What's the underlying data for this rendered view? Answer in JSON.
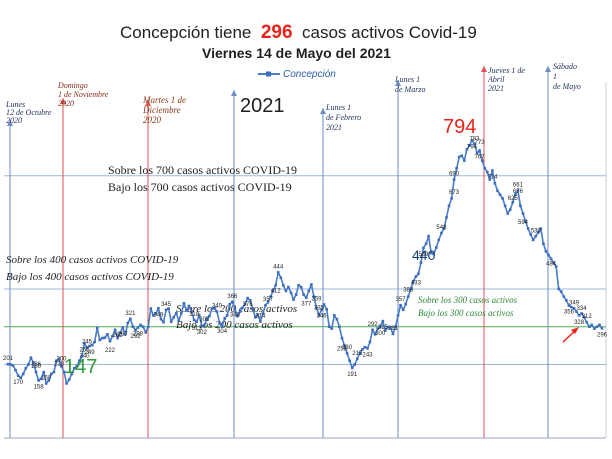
{
  "chart_data": {
    "type": "line",
    "title_prefix": "Concepción tiene",
    "title_number": "296",
    "title_suffix": "casos activos Covid-19",
    "subtitle": "Viernes 14 de Mayo del 2021",
    "legend": "Concepción",
    "ylim": [
      0,
      900
    ],
    "series": [
      {
        "name": "Concepción",
        "color": "#4a7cc8",
        "values": [
          201,
          200,
          197,
          185,
          170,
          165,
          175,
          190,
          200,
          218,
          205,
          180,
          158,
          162,
          180,
          150,
          158,
          175,
          180,
          210,
          215,
          195,
          180,
          150,
          160,
          175,
          190,
          195,
          210,
          222,
          256,
          245,
          249,
          251,
          260,
          297,
          265,
          270,
          271,
          280,
          262,
          275,
          292,
          270,
          284,
          298,
          280,
          310,
          321,
          300,
          291,
          298,
          305,
          300,
          285,
          299,
          348,
          330,
          335,
          349,
          320,
          312,
          345,
          348,
          313,
          325,
          336,
          316,
          336,
          362,
          343,
          355,
          340,
          318,
          313,
          331,
          302,
          304,
          320,
          328,
          348,
          350,
          340,
          310,
          300,
          322,
          330,
          360,
          366,
          348,
          328,
          340,
          350,
          360,
          376,
          370,
          348,
          325,
          332,
          314,
          335,
          357,
          365,
          380,
          395,
          410,
          444,
          430,
          410,
          395,
          405,
          390,
          372,
          385,
          410,
          405,
          385,
          377,
          395,
          412,
          380,
          350,
          330,
          345,
          359,
          346,
          300,
          295,
          330,
          320,
          300,
          270,
          250,
          230,
          210,
          191,
          200,
          215,
          230,
          240,
          246,
          243,
          260,
          292,
          280,
          295,
          300,
          315,
          290,
          299,
          298,
          281,
          300,
          330,
          357,
          345,
          360,
          380,
          400,
          420,
          433,
          440,
          470,
          509,
          520,
          540,
          495,
          493,
          510,
          530,
          548,
          560,
          590,
          620,
          640,
          690,
          720,
          750,
          753,
          740,
          770,
          780,
          794,
          785,
          760,
          767,
          740,
          720,
          710,
          690,
          714,
          680,
          660,
          650,
          640,
          620,
          600,
          610,
          630,
          650,
          661,
          620,
          600,
          580,
          560,
          545,
          530,
          540,
          550,
          560,
          520,
          500,
          490,
          480,
          470,
          460,
          400,
          393,
          380,
          370,
          356,
          352,
          349,
          340,
          330,
          335,
          325,
          312,
          300,
          305,
          295,
          300,
          305,
          296
        ],
        "label_values": [
          201,
          170,
          180,
          158,
          186,
          218,
          150,
          240,
          200,
          256,
          245,
          249,
          222,
          297,
          262,
          292,
          321,
          298,
          345,
          349,
          318,
          313,
          305,
          302,
          340,
          304,
          366,
          348,
          314,
          376,
          444,
          412,
          357,
          377,
          359,
          346,
          335,
          258,
          230,
          191,
          215,
          243,
          292,
          315,
          281,
          300,
          357,
          433,
          383,
          509,
          548,
          673,
          690,
          794,
          783,
          767,
          773,
          714,
          661,
          676,
          625,
          594,
          539,
          484,
          349,
          356,
          334,
          328,
          312,
          296
        ],
        "big_labels": [
          "147",
          "440",
          "794"
        ],
        "peak": 794,
        "trough": 147
      }
    ],
    "date_annotations": [
      {
        "line1": "Lunes",
        "line2": "12 de Octubre",
        "line3": "2020"
      },
      {
        "line1": "Domingo",
        "line2": "1 de Noviembre",
        "line3": "2020"
      },
      {
        "line1": "Martes 1 de",
        "line2": "Diciembre",
        "line3": "2020"
      },
      {
        "line1": "Lunes 1",
        "line2": "de Febrero",
        "line3": "2021"
      },
      {
        "line1": "Lunes 1",
        "line2": "de Marzo",
        "line3": ""
      },
      {
        "line1": "Jueves 1 de",
        "line2": "Abril",
        "line3": "2021"
      },
      {
        "line1": "Sábado",
        "line2": "1",
        "line3": "de Mayo"
      }
    ],
    "year_label": "2021",
    "bands": {
      "above_700": "Sobre los 700 casos activos COVID-19",
      "below_700": "Bajo los 700 casos activos COVID-19",
      "above_400": "Sobre los 400 casos activos COVID-19",
      "below_400": "Bajo los 400 casos activos  COVID-19",
      "above_300": "Sobre los 300 casos activos",
      "below_300": "Bajo los 300 casos activos",
      "above_200": "Sobre los 200 casos activos",
      "below_200": "Bajo los 200 casos activos"
    },
    "colors": {
      "line": "#4a7cc8",
      "marker": "#3a6cc0",
      "gridline": "#9db7d8",
      "green_line": "#4caf50",
      "red_marker": "#e8231a",
      "date_line_blue": "#6a8cc8",
      "date_line_red": "#d9534f"
    }
  }
}
